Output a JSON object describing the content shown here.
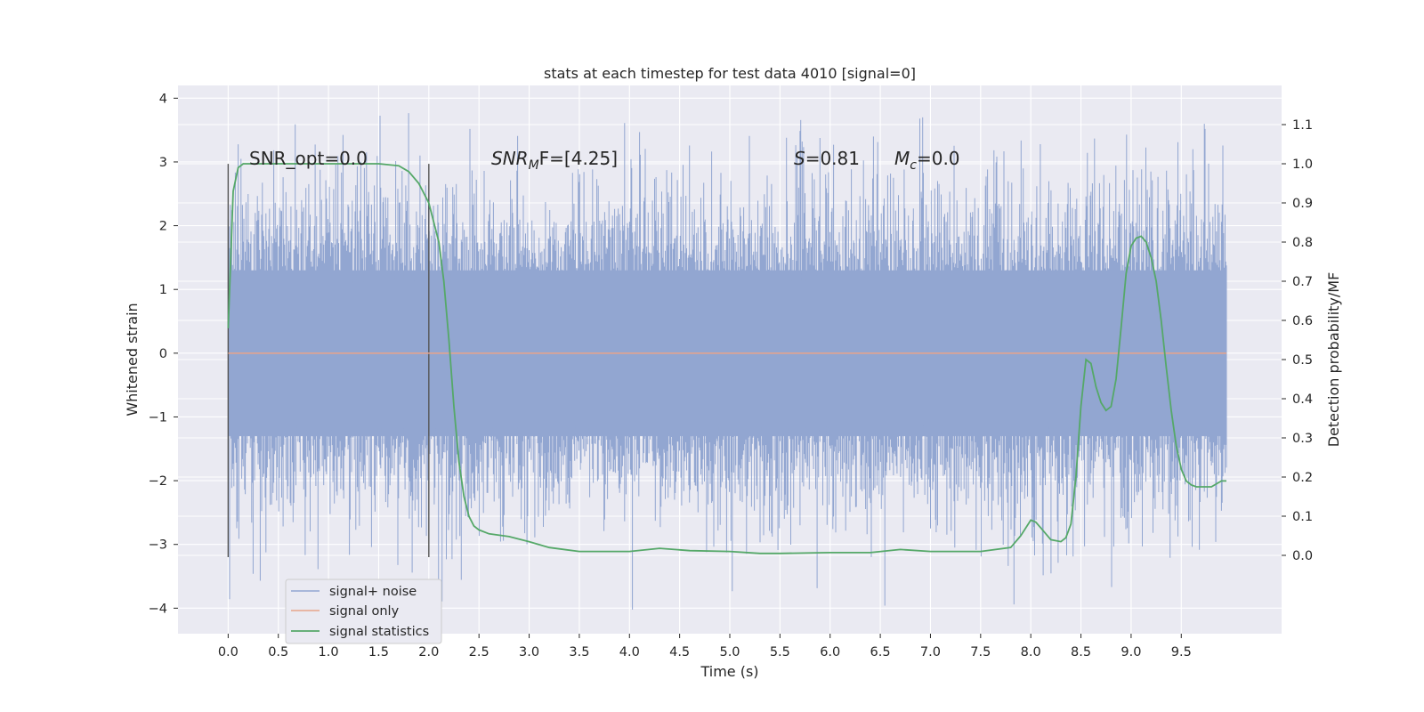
{
  "chart_data": {
    "type": "line",
    "title": "stats at each timestep for test data 4010 [signal=0]",
    "xlabel": "Time (s)",
    "ylabel": "Whitened strain",
    "ylabel_right": "Detection probability/MF",
    "xlim": [
      -0.5,
      10.5
    ],
    "ylim": [
      -4.4,
      4.2
    ],
    "ylim_right": [
      -0.2,
      1.2
    ],
    "x_ticks": [
      "0.0",
      "0.5",
      "1.0",
      "1.5",
      "2.0",
      "2.5",
      "3.0",
      "3.5",
      "4.0",
      "4.5",
      "5.0",
      "5.5",
      "6.0",
      "6.5",
      "7.0",
      "7.5",
      "8.0",
      "8.5",
      "9.0",
      "9.5"
    ],
    "y_ticks": [
      "4",
      "3",
      "2",
      "1",
      "0",
      "−1",
      "−2",
      "−3",
      "−4"
    ],
    "y_ticks_right": [
      "1.1",
      "1.0",
      "0.9",
      "0.8",
      "0.7",
      "0.6",
      "0.5",
      "0.4",
      "0.3",
      "0.2",
      "0.1",
      "0.0"
    ],
    "grid": true,
    "legend_position": "lower-left",
    "annotations": {
      "snr_opt": "SNR_opt=0.0",
      "snr_mf_sym": "SNR",
      "snr_mf_sub": "M",
      "snr_mf_rest": "F=[4.25]",
      "s_sym": "S",
      "s_val": "=0.81",
      "mc_sym": "M",
      "mc_sub": "c",
      "mc_val": "=0.0"
    },
    "window_markers_x": [
      0.0,
      2.0
    ],
    "series": [
      {
        "name": "signal+ noise",
        "color": "#92a6d1",
        "x_range": [
          0.0,
          9.95
        ],
        "band_core": [
          -1.3,
          1.3
        ],
        "band_typical": [
          -2.6,
          2.6
        ],
        "peak_min": -4.05,
        "peak_max": 3.82
      },
      {
        "name": "signal only",
        "color": "#e8a48a",
        "x": [
          0.0,
          9.95
        ],
        "y": [
          0.0,
          0.0
        ]
      },
      {
        "name": "signal statistics",
        "color": "#55a868",
        "axis": "right",
        "x": [
          0.0,
          0.05,
          0.1,
          0.15,
          0.2,
          0.3,
          0.5,
          1.0,
          1.5,
          1.7,
          1.8,
          1.9,
          2.0,
          2.1,
          2.15,
          2.2,
          2.25,
          2.3,
          2.35,
          2.4,
          2.45,
          2.5,
          2.6,
          2.8,
          3.0,
          3.2,
          3.5,
          4.0,
          4.3,
          4.6,
          5.0,
          5.3,
          5.5,
          6.0,
          6.4,
          6.7,
          7.0,
          7.5,
          7.8,
          7.9,
          8.0,
          8.05,
          8.1,
          8.2,
          8.3,
          8.35,
          8.4,
          8.45,
          8.5,
          8.55,
          8.6,
          8.65,
          8.7,
          8.75,
          8.8,
          8.85,
          8.9,
          8.95,
          9.0,
          9.05,
          9.1,
          9.15,
          9.2,
          9.25,
          9.3,
          9.35,
          9.4,
          9.45,
          9.5,
          9.55,
          9.6,
          9.65,
          9.7,
          9.8,
          9.9,
          9.95
        ],
        "y": [
          0.58,
          0.93,
          0.99,
          1.0,
          1.0,
          1.0,
          1.0,
          1.0,
          1.0,
          0.995,
          0.98,
          0.95,
          0.9,
          0.8,
          0.7,
          0.55,
          0.38,
          0.24,
          0.15,
          0.1,
          0.075,
          0.065,
          0.055,
          0.048,
          0.035,
          0.02,
          0.01,
          0.01,
          0.018,
          0.012,
          0.01,
          0.005,
          0.005,
          0.007,
          0.007,
          0.015,
          0.01,
          0.01,
          0.02,
          0.05,
          0.09,
          0.085,
          0.07,
          0.04,
          0.035,
          0.045,
          0.08,
          0.2,
          0.38,
          0.5,
          0.49,
          0.43,
          0.39,
          0.37,
          0.38,
          0.45,
          0.58,
          0.72,
          0.79,
          0.81,
          0.815,
          0.8,
          0.76,
          0.7,
          0.6,
          0.48,
          0.37,
          0.28,
          0.22,
          0.19,
          0.18,
          0.175,
          0.175,
          0.175,
          0.19,
          0.19
        ]
      }
    ]
  }
}
